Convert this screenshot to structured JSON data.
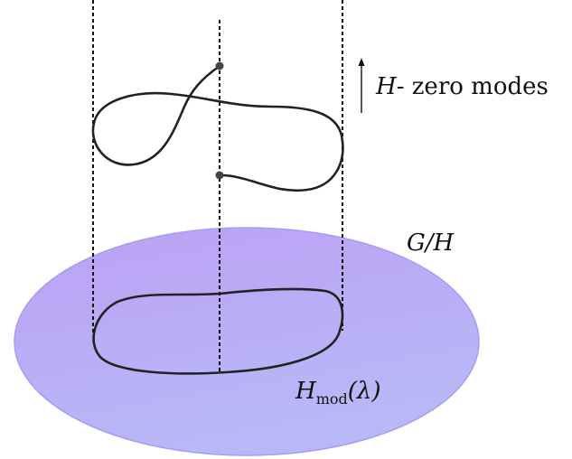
{
  "labels": {
    "zero_modes_symbol": "H",
    "zero_modes_text": "- zero modes",
    "quotient_space": "G/H",
    "moduli_symbol": "H",
    "moduli_subscript": "mod",
    "moduli_argument": "(λ)"
  },
  "colors": {
    "disk_top": "#bda0f5",
    "disk_bottom": "#b7b9f6",
    "disk_edge": "#a79cf0",
    "curve": "#222222",
    "guide": "#111111",
    "endpoint": "#444444"
  }
}
